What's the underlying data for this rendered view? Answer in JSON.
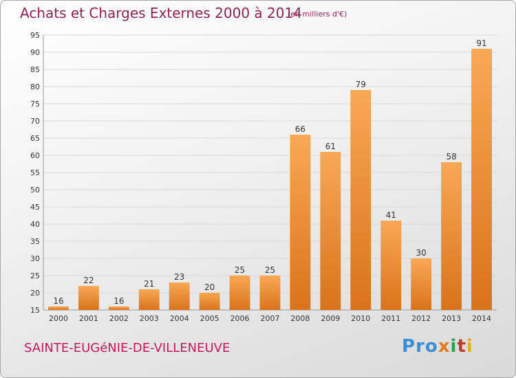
{
  "header": {
    "title": "Achats et Charges Externes 2000 à 2014",
    "unit": "(en milliers d'€)"
  },
  "footer": {
    "commune": "SAINTE-EUGéNIE-DE-VILLENEUVE",
    "logo_letters": [
      "P",
      "r",
      "o",
      "x",
      "i",
      "t",
      "i"
    ],
    "logo_colors": [
      "#3a8fd6",
      "#3a8fd6",
      "#3a8fd6",
      "#e07a1f",
      "#2e9e4f",
      "#c0392b",
      "#e0b020"
    ]
  },
  "colors": {
    "bar_light": "#f9a855",
    "bar_dark": "#d9731a",
    "grid": "#d8d8d8",
    "axis_text": "#333333"
  },
  "chart_data": {
    "type": "bar",
    "categories": [
      "2000",
      "2001",
      "2002",
      "2003",
      "2004",
      "2005",
      "2006",
      "2007",
      "2008",
      "2009",
      "2010",
      "2011",
      "2012",
      "2013",
      "2014"
    ],
    "values": [
      16,
      22,
      16,
      21,
      23,
      20,
      25,
      25,
      66,
      61,
      79,
      41,
      30,
      58,
      91
    ],
    "ylim": [
      15,
      95
    ],
    "yticks": [
      15,
      20,
      25,
      30,
      35,
      40,
      45,
      50,
      55,
      60,
      65,
      70,
      75,
      80,
      85,
      90,
      95
    ],
    "grid": true,
    "title": "Achats et Charges Externes 2000 à 2014",
    "xlabel": "",
    "ylabel": ""
  }
}
